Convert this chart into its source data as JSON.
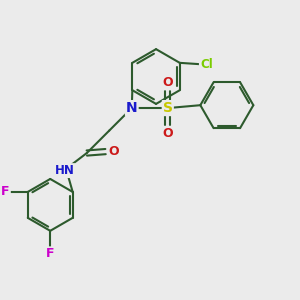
{
  "background_color": "#ebebeb",
  "bond_color": "#2d5a2d",
  "bond_width": 1.5,
  "atom_colors": {
    "N": "#1a1acc",
    "S": "#c8c800",
    "O": "#cc1a1a",
    "Cl": "#7acc00",
    "F": "#cc00cc",
    "H": "#507850",
    "C": "#2d5a2d"
  },
  "figsize": [
    3.0,
    3.0
  ],
  "dpi": 100
}
